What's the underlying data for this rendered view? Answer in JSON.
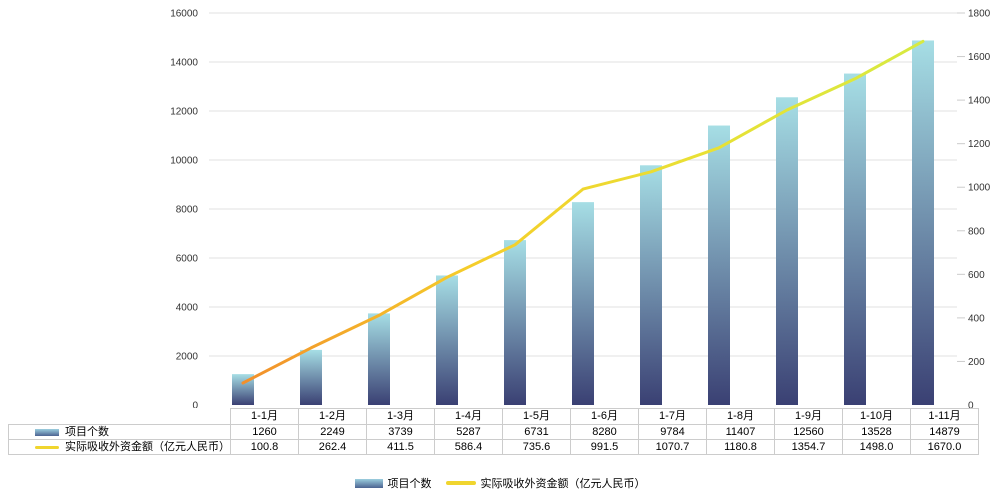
{
  "chart_data": {
    "type": "bar+line",
    "title": "",
    "categories": [
      "1-1月",
      "1-2月",
      "1-3月",
      "1-4月",
      "1-5月",
      "1-6月",
      "1-7月",
      "1-8月",
      "1-9月",
      "1-10月",
      "1-11月"
    ],
    "series": [
      {
        "name": "项目个数",
        "type": "bar",
        "axis": "left",
        "values": [
          1260,
          2249,
          3739,
          5287,
          6731,
          8280,
          9784,
          11407,
          12560,
          13528,
          14879
        ]
      },
      {
        "name": "实际吸收外资金额（亿元人民币）",
        "type": "line",
        "axis": "right",
        "values": [
          100.8,
          262.4,
          411.5,
          586.4,
          735.6,
          991.5,
          1070.7,
          1180.8,
          1354.7,
          1498.0,
          1670.0
        ]
      }
    ],
    "left_axis": {
      "min": 0,
      "max": 16000,
      "step": 2000,
      "tick_labels": [
        "0",
        "2000",
        "4000",
        "6000",
        "8000",
        "10000",
        "12000",
        "14000",
        "16000"
      ]
    },
    "right_axis": {
      "min": 0,
      "max": 1800,
      "step": 200,
      "tick_labels": [
        "0",
        "200",
        "400",
        "600",
        "800",
        "1000",
        "1200",
        "1400",
        "1600",
        "1800"
      ]
    },
    "grid": true,
    "legend_position": "bottom",
    "table_shown": true
  },
  "colors": {
    "bar_top": "#a6dee5",
    "bar_bottom": "#3a4073",
    "line_gradient": [
      "#f28f2b",
      "#f5cd2a",
      "#e9e034",
      "#d7ea41"
    ],
    "legend_line": "#f0d52e",
    "grid_line": "#e2e2e2",
    "axis_tick": "#cccccc",
    "axis_text": "#333333",
    "table_border": "#cccccc"
  }
}
